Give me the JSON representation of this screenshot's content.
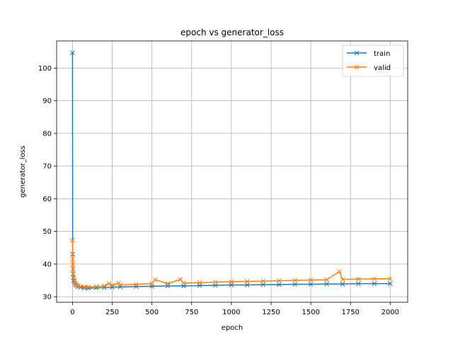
{
  "chart_data": {
    "type": "line",
    "title": "epoch vs generator_loss",
    "xlabel": "epoch",
    "ylabel": "generator_loss",
    "xlim": [
      -100,
      2110
    ],
    "ylim": [
      28.3,
      108.3
    ],
    "xticks": [
      0,
      250,
      500,
      750,
      1000,
      1250,
      1500,
      1750,
      2000
    ],
    "yticks": [
      30,
      40,
      50,
      60,
      70,
      80,
      90,
      100
    ],
    "grid": true,
    "legend": "top-right",
    "marker": "x",
    "series": [
      {
        "name": "train",
        "color": "#1f77b4",
        "points": [
          [
            0,
            104.7
          ],
          [
            1,
            43.0
          ],
          [
            2,
            38.5
          ],
          [
            3,
            37.0
          ],
          [
            5,
            35.8
          ],
          [
            8,
            35.0
          ],
          [
            12,
            34.3
          ],
          [
            18,
            33.8
          ],
          [
            25,
            33.4
          ],
          [
            35,
            33.1
          ],
          [
            50,
            32.9
          ],
          [
            75,
            32.7
          ],
          [
            100,
            32.6
          ],
          [
            150,
            32.7
          ],
          [
            200,
            32.8
          ],
          [
            250,
            32.9
          ],
          [
            300,
            33.0
          ],
          [
            400,
            33.1
          ],
          [
            500,
            33.2
          ],
          [
            600,
            33.3
          ],
          [
            700,
            33.3
          ],
          [
            800,
            33.4
          ],
          [
            900,
            33.5
          ],
          [
            1000,
            33.6
          ],
          [
            1100,
            33.6
          ],
          [
            1200,
            33.7
          ],
          [
            1300,
            33.7
          ],
          [
            1400,
            33.8
          ],
          [
            1500,
            33.8
          ],
          [
            1600,
            33.9
          ],
          [
            1700,
            33.9
          ],
          [
            1800,
            34.0
          ],
          [
            1900,
            34.0
          ],
          [
            2000,
            34.0
          ]
        ]
      },
      {
        "name": "valid",
        "color": "#ff7f0e",
        "points": [
          [
            0,
            47.3
          ],
          [
            1,
            41.5
          ],
          [
            2,
            40.0
          ],
          [
            3,
            38.5
          ],
          [
            5,
            37.0
          ],
          [
            8,
            35.8
          ],
          [
            12,
            34.8
          ],
          [
            18,
            34.0
          ],
          [
            25,
            33.6
          ],
          [
            35,
            33.3
          ],
          [
            50,
            33.1
          ],
          [
            75,
            33.0
          ],
          [
            100,
            33.0
          ],
          [
            150,
            33.1
          ],
          [
            200,
            33.3
          ],
          [
            230,
            34.0
          ],
          [
            250,
            33.5
          ],
          [
            290,
            34.2
          ],
          [
            300,
            33.6
          ],
          [
            400,
            33.8
          ],
          [
            500,
            34.0
          ],
          [
            520,
            35.2
          ],
          [
            600,
            34.0
          ],
          [
            680,
            35.3
          ],
          [
            700,
            34.2
          ],
          [
            800,
            34.3
          ],
          [
            900,
            34.5
          ],
          [
            1000,
            34.6
          ],
          [
            1100,
            34.7
          ],
          [
            1200,
            34.8
          ],
          [
            1300,
            34.9
          ],
          [
            1400,
            35.0
          ],
          [
            1500,
            35.1
          ],
          [
            1600,
            35.2
          ],
          [
            1680,
            37.7
          ],
          [
            1700,
            35.3
          ],
          [
            1800,
            35.4
          ],
          [
            1900,
            35.5
          ],
          [
            2000,
            35.5
          ]
        ]
      }
    ]
  }
}
